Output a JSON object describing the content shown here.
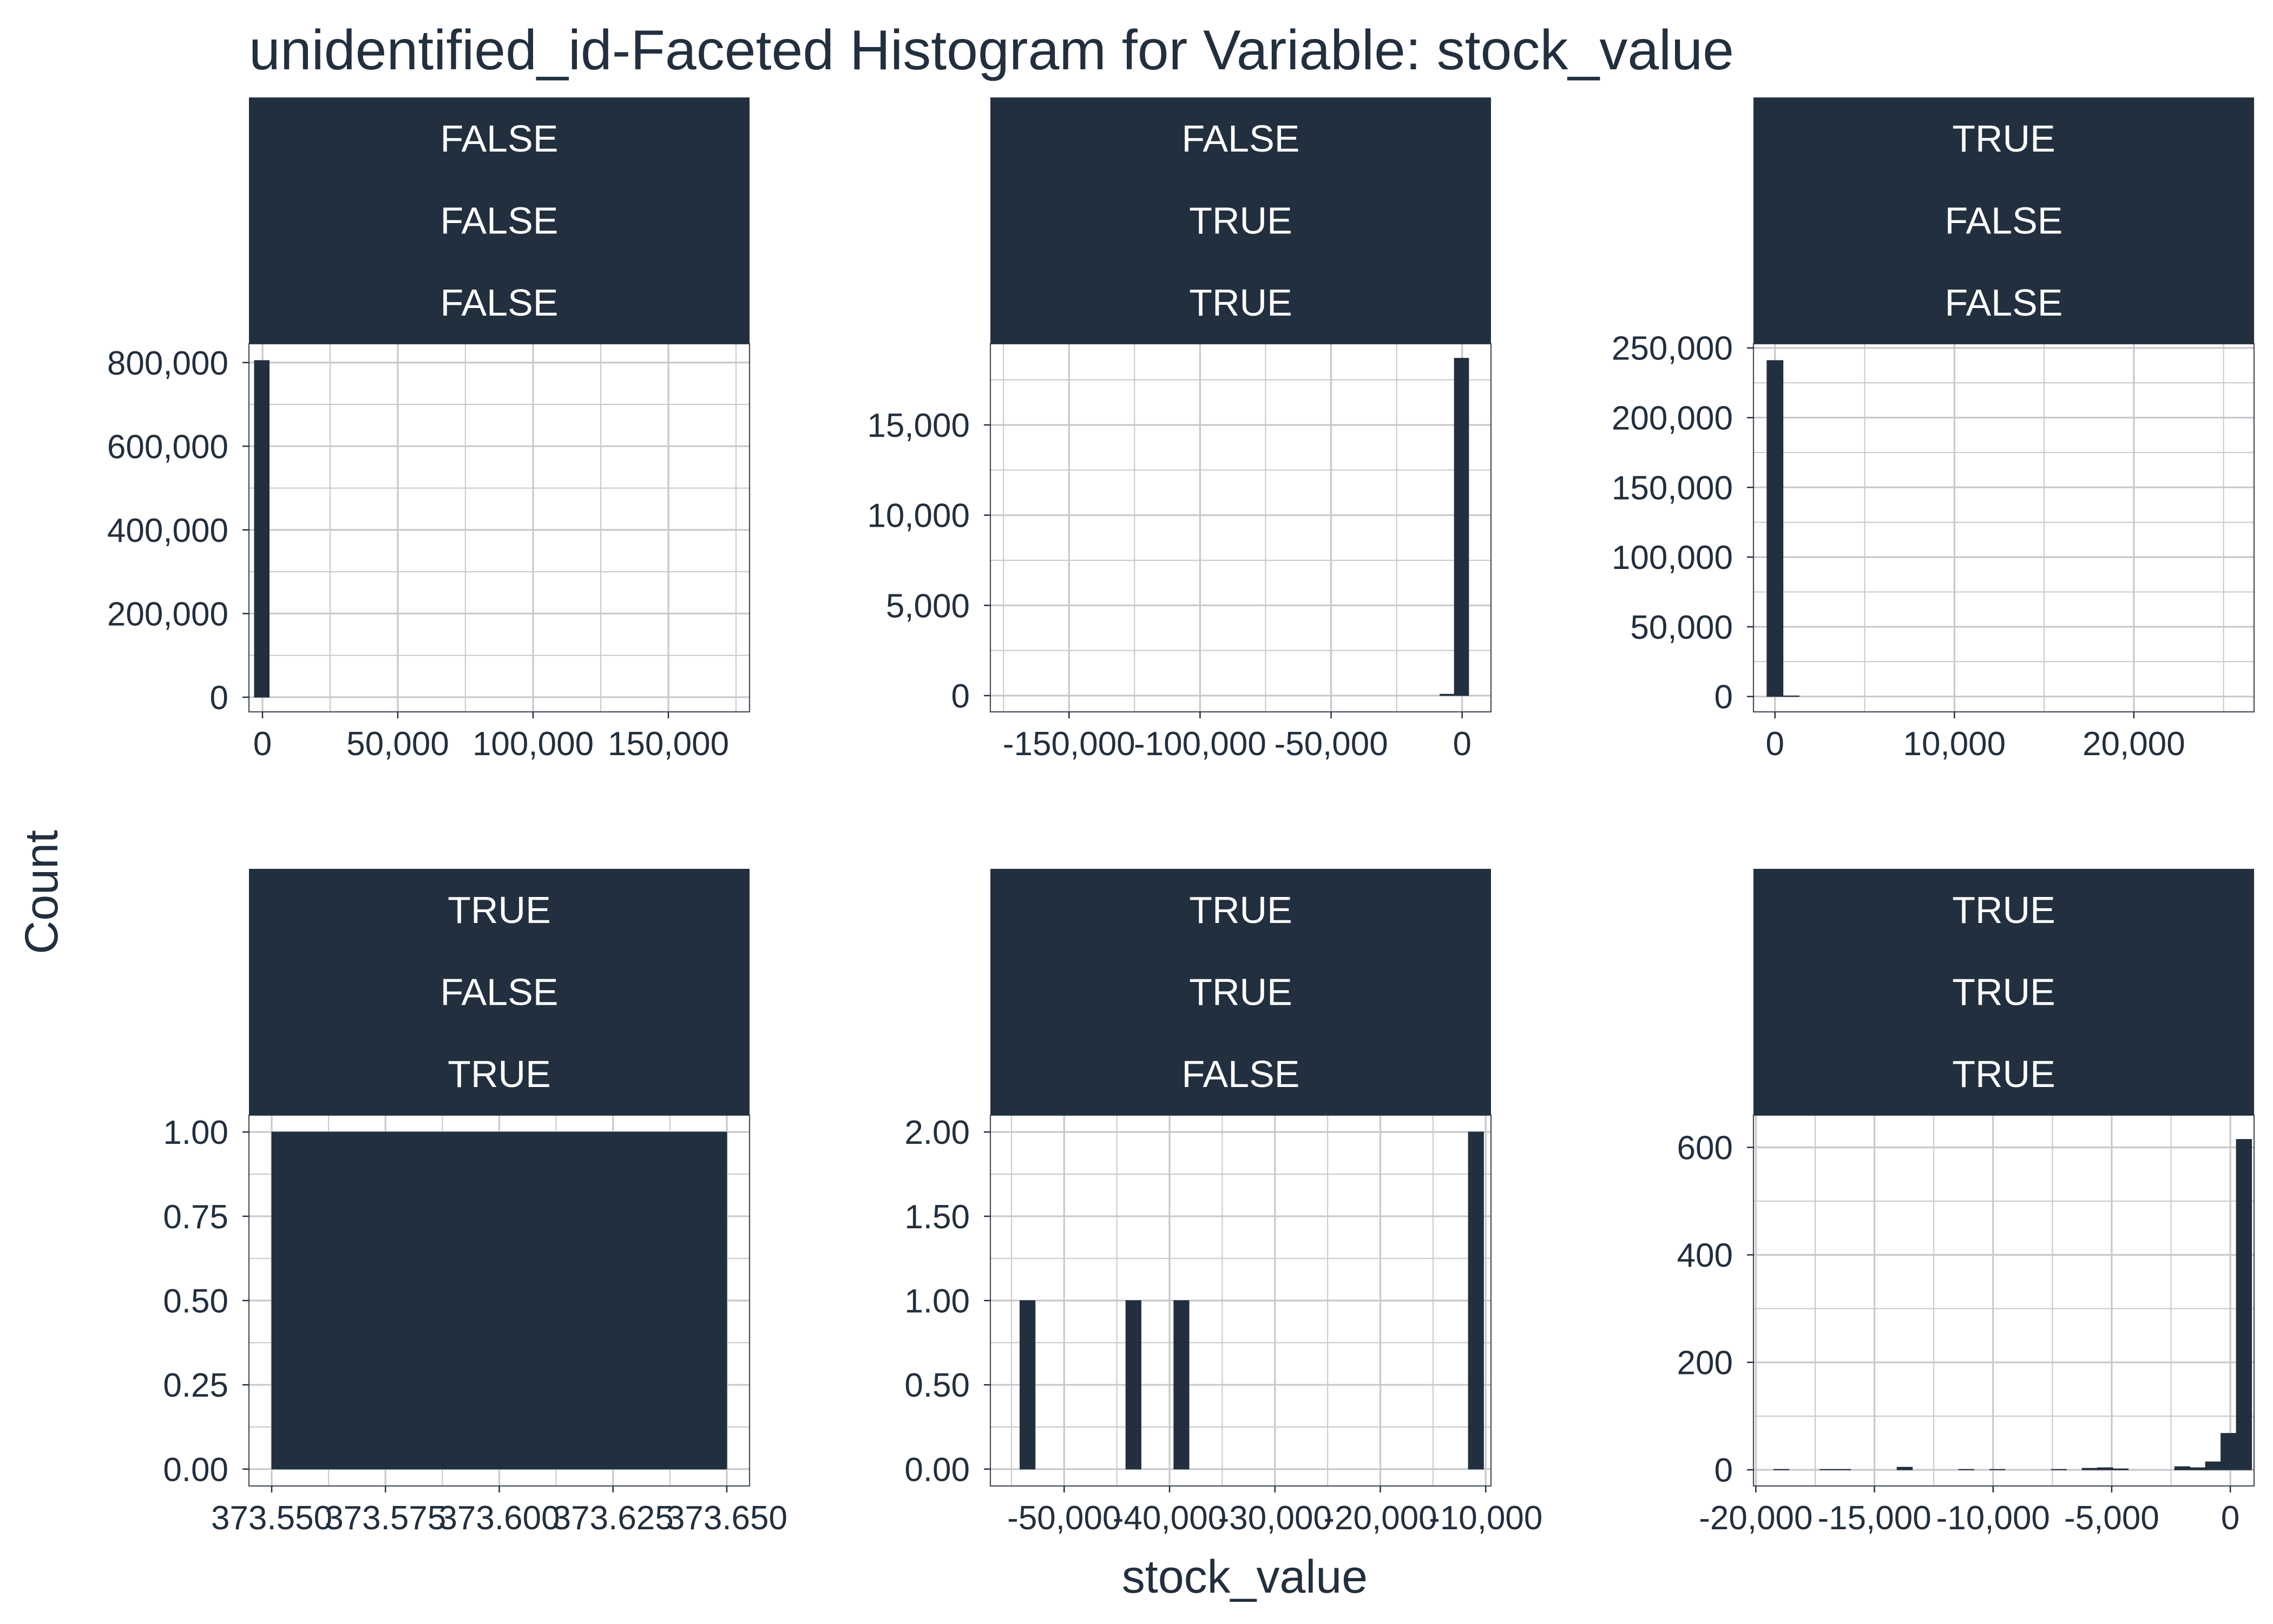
{
  "colors": {
    "bar": "#222f3e",
    "strip": "#222f3e",
    "strip_text": "#ffffff",
    "grid": "#c8c8cd",
    "text": "#222f3e",
    "background": "#ffffff"
  },
  "chart_data": {
    "type": "bar",
    "title": "unidentified_id-Faceted Histogram for Variable: stock_value",
    "xlabel": "stock_value",
    "ylabel": "Count",
    "grid": true,
    "panels": [
      {
        "strips": [
          "FALSE",
          "FALSE",
          "FALSE"
        ],
        "xlim": [
          -5000,
          180000
        ],
        "ylim": [
          -35000,
          845000
        ],
        "x_ticks": [
          0,
          50000,
          100000,
          150000
        ],
        "x_tick_labels": [
          "0",
          "50,000",
          "100,000",
          "150,000"
        ],
        "y_ticks": [
          0,
          200000,
          400000,
          600000,
          800000
        ],
        "y_tick_labels": [
          "0",
          "200,000",
          "400,000",
          "600,000",
          "800,000"
        ],
        "bars": [
          {
            "x0": -3000,
            "x1": 2500,
            "count": 805000
          }
        ]
      },
      {
        "strips": [
          "FALSE",
          "TRUE",
          "TRUE"
        ],
        "xlim": [
          -180000,
          11000
        ],
        "ylim": [
          -900,
          19500
        ],
        "x_ticks": [
          -150000,
          -100000,
          -50000,
          0
        ],
        "x_tick_labels": [
          "-150,000",
          "-100,000",
          "-50,000",
          "0"
        ],
        "y_ticks": [
          0,
          5000,
          10000,
          15000
        ],
        "y_tick_labels": [
          "0",
          "5,000",
          "10,000",
          "15,000"
        ],
        "bars": [
          {
            "x0": -8500,
            "x1": -3000,
            "count": 80
          },
          {
            "x0": -3000,
            "x1": 2500,
            "count": 18700
          }
        ]
      },
      {
        "strips": [
          "TRUE",
          "FALSE",
          "FALSE"
        ],
        "xlim": [
          -1200,
          26700
        ],
        "ylim": [
          -11000,
          253000
        ],
        "x_ticks": [
          0,
          10000,
          20000
        ],
        "x_tick_labels": [
          "0",
          "10,000",
          "20,000"
        ],
        "y_ticks": [
          0,
          50000,
          100000,
          150000,
          200000,
          250000
        ],
        "y_tick_labels": [
          "0",
          "50,000",
          "100,000",
          "150,000",
          "200,000",
          "250,000"
        ],
        "bars": [
          {
            "x0": -450,
            "x1": 450,
            "count": 241000
          },
          {
            "x0": 450,
            "x1": 1350,
            "count": 500
          }
        ]
      },
      {
        "strips": [
          "TRUE",
          "FALSE",
          "TRUE"
        ],
        "xlim": [
          373.545,
          373.655
        ],
        "ylim": [
          -0.05,
          1.05
        ],
        "x_ticks": [
          373.55,
          373.575,
          373.6,
          373.625,
          373.65
        ],
        "x_tick_labels": [
          "373.550",
          "373.575",
          "373.600",
          "373.625",
          "373.650"
        ],
        "y_ticks": [
          0,
          0.25,
          0.5,
          0.75,
          1
        ],
        "y_tick_labels": [
          "0.00",
          "0.25",
          "0.50",
          "0.75",
          "1.00"
        ],
        "bars": [
          {
            "x0": 373.55,
            "x1": 373.65,
            "count": 1
          }
        ]
      },
      {
        "strips": [
          "TRUE",
          "TRUE",
          "FALSE"
        ],
        "xlim": [
          -57000,
          -9500
        ],
        "ylim": [
          -0.1,
          2.1
        ],
        "x_ticks": [
          -50000,
          -40000,
          -30000,
          -20000,
          -10000
        ],
        "x_tick_labels": [
          "-50,000",
          "-40,000",
          "-30,000",
          "-20,000",
          "-10,000"
        ],
        "y_ticks": [
          0,
          0.5,
          1,
          1.5,
          2
        ],
        "y_tick_labels": [
          "0.00",
          "0.50",
          "1.00",
          "1.50",
          "2.00"
        ],
        "bars": [
          {
            "x0": -54200,
            "x1": -52750,
            "count": 1
          },
          {
            "x0": -44150,
            "x1": -42700,
            "count": 1
          },
          {
            "x0": -39600,
            "x1": -38150,
            "count": 1
          },
          {
            "x0": -11650,
            "x1": -10200,
            "count": 2
          }
        ]
      },
      {
        "strips": [
          "TRUE",
          "TRUE",
          "TRUE"
        ],
        "xlim": [
          -20100,
          1000
        ],
        "ylim": [
          -30,
          660
        ],
        "x_ticks": [
          -20000,
          -15000,
          -10000,
          -5000,
          0
        ],
        "x_tick_labels": [
          "-20,000",
          "-15,000",
          "-10,000",
          "-5,000",
          "0"
        ],
        "y_ticks": [
          0,
          200,
          400,
          600
        ],
        "y_tick_labels": [
          "0",
          "200",
          "400",
          "600"
        ],
        "bars": [
          {
            "x0": -19250,
            "x1": -18600,
            "count": 1
          },
          {
            "x0": -17300,
            "x1": -16650,
            "count": 1
          },
          {
            "x0": -16650,
            "x1": -16000,
            "count": 1
          },
          {
            "x0": -14050,
            "x1": -13400,
            "count": 5
          },
          {
            "x0": -11450,
            "x1": -10800,
            "count": 1
          },
          {
            "x0": -10150,
            "x1": -9500,
            "count": 1
          },
          {
            "x0": -7550,
            "x1": -6900,
            "count": 1
          },
          {
            "x0": -6250,
            "x1": -5600,
            "count": 3
          },
          {
            "x0": -5600,
            "x1": -4950,
            "count": 4
          },
          {
            "x0": -4950,
            "x1": -4300,
            "count": 2
          },
          {
            "x0": -2350,
            "x1": -1700,
            "count": 6
          },
          {
            "x0": -1700,
            "x1": -1050,
            "count": 4
          },
          {
            "x0": -1050,
            "x1": -400,
            "count": 15
          },
          {
            "x0": -400,
            "x1": 250,
            "count": 68
          },
          {
            "x0": 250,
            "x1": 900,
            "count": 615
          }
        ]
      }
    ]
  }
}
